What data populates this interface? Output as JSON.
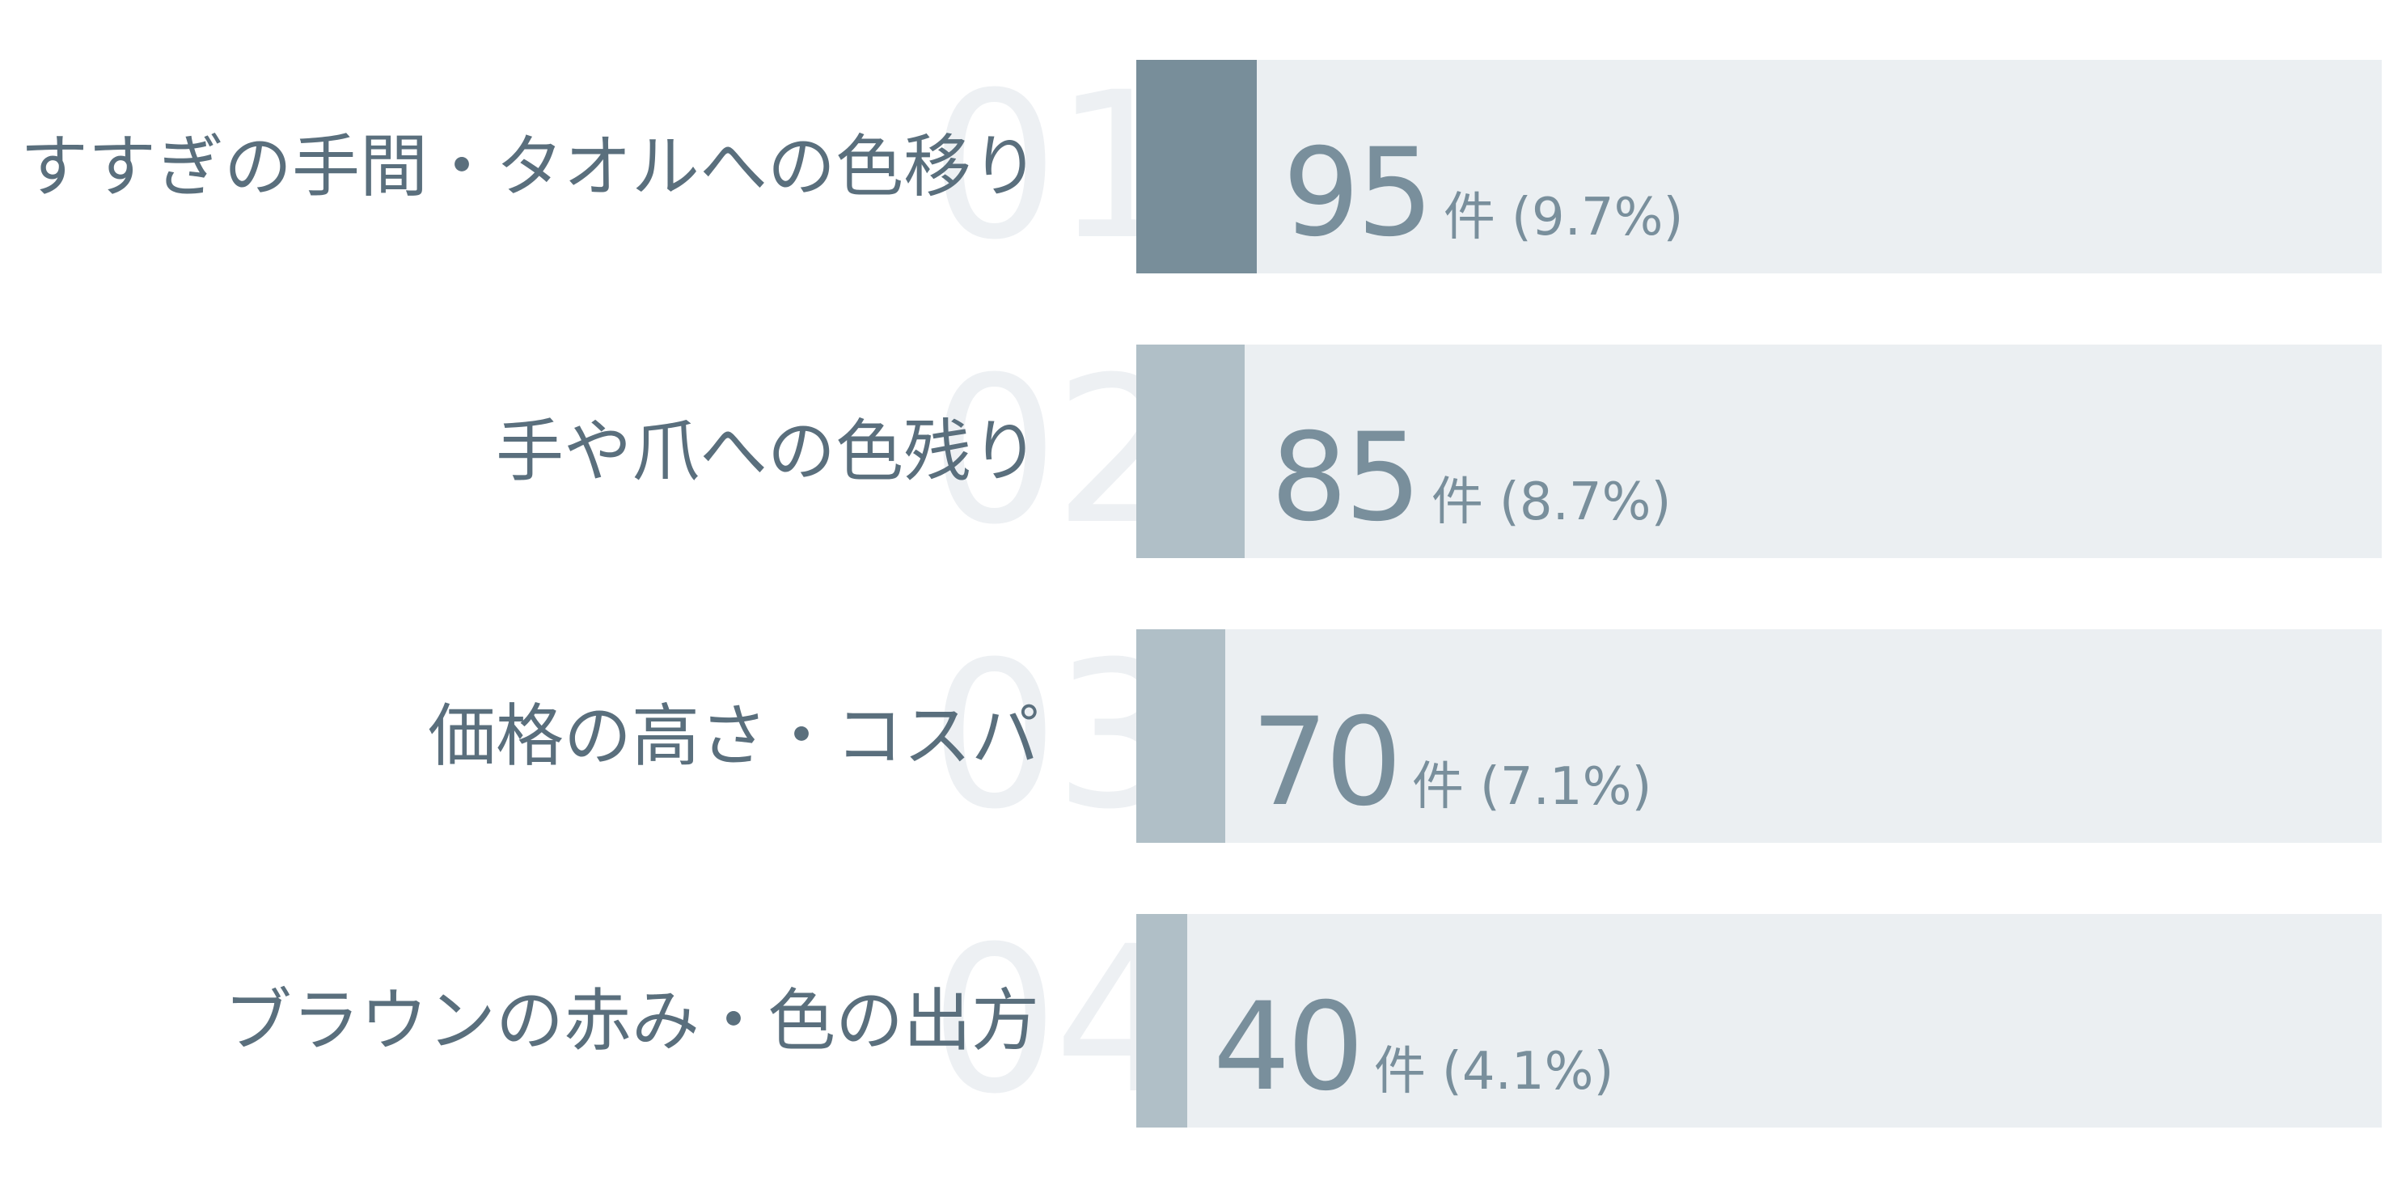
{
  "chart_data": {
    "type": "bar",
    "orientation": "horizontal",
    "xlim": [
      0,
      980
    ],
    "unit": "件",
    "colors": {
      "highlight": "#788e9a",
      "bar": "#b0bfc7",
      "track": "#ebeff2",
      "text": "#5a6f7d",
      "value": "#798f9c"
    },
    "rows": [
      {
        "rank": "01",
        "label": "すすぎの手間・タオルへの色移り",
        "value": 95,
        "value_text": "95",
        "percent": "(9.7%)",
        "highlight": true
      },
      {
        "rank": "02",
        "label": "手や爪への色残り",
        "value": 85,
        "value_text": "85",
        "percent": "(8.7%)",
        "highlight": false
      },
      {
        "rank": "03",
        "label": "価格の高さ・コスパ",
        "value": 70,
        "value_text": "70",
        "percent": "(7.1%)",
        "highlight": false
      },
      {
        "rank": "04",
        "label": "ブラウンの赤み・色の出方",
        "value": 40,
        "value_text": "40",
        "percent": "(4.1%)",
        "highlight": false
      }
    ]
  }
}
